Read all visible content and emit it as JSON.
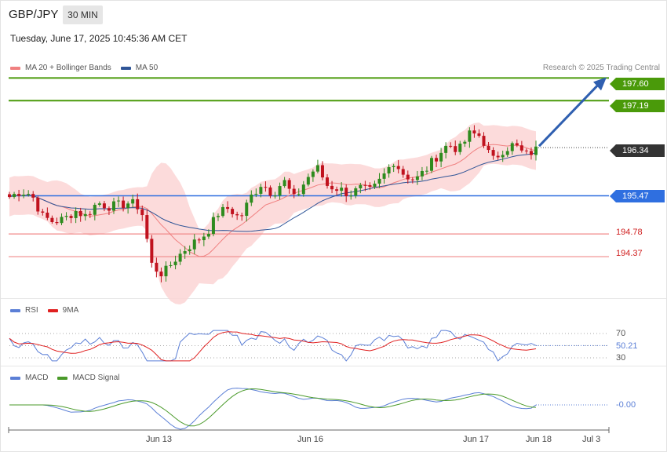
{
  "header": {
    "symbol": "GBP/JPY",
    "timeframe": "30 MIN",
    "datetime": "Tuesday, June 17, 2025 10:45:36 AM CET",
    "copyright": "Research © 2025 Trading Central"
  },
  "legends": {
    "main": [
      {
        "label": "MA 20 + Bollinger Bands",
        "color": "#f08080"
      },
      {
        "label": "MA 50",
        "color": "#2f5597"
      }
    ],
    "rsi": [
      {
        "label": "RSI",
        "color": "#5b7fd6"
      },
      {
        "label": "9MA",
        "color": "#e02020"
      }
    ],
    "macd": [
      {
        "label": "MACD",
        "color": "#5b7fd6"
      },
      {
        "label": "MACD Signal",
        "color": "#4a9a2a"
      }
    ]
  },
  "price_labels": [
    {
      "value": "197.60",
      "color": "#4a9a0a",
      "style": "badge"
    },
    {
      "value": "197.19",
      "color": "#4a9a0a",
      "style": "badge"
    },
    {
      "value": "196.34",
      "color": "#333333",
      "style": "badge"
    },
    {
      "value": "195.47",
      "color": "#2f6fe0",
      "style": "badge"
    },
    {
      "value": "194.78",
      "color": "#d02020",
      "style": "text"
    },
    {
      "value": "194.37",
      "color": "#d02020",
      "style": "text"
    }
  ],
  "rsi_labels": {
    "upper": "70",
    "current": "50.21",
    "lower": "30"
  },
  "macd_label": "-0.00",
  "x_labels": [
    "Jun 13",
    "Jun 16",
    "Jun 17",
    "Jun 18",
    "Jul 3"
  ],
  "colors": {
    "up": "#2e8b1e",
    "down": "#c0121e",
    "band_fill": "#fcd5d5"
  },
  "chart_data": {
    "type": "candlestick",
    "ylim": [
      193.7,
      198.0
    ],
    "levels": {
      "resistance": [
        197.6,
        197.19
      ],
      "current": 196.34,
      "pivot": 195.47,
      "support": [
        194.78,
        194.37
      ]
    },
    "close_path": [
      195.45,
      195.55,
      195.5,
      195.1,
      195.0,
      195.05,
      195.2,
      195.1,
      195.35,
      195.28,
      195.3,
      195.35,
      195.25,
      194.2,
      194.05,
      194.3,
      194.5,
      194.65,
      194.8,
      195.15,
      195.25,
      195.05,
      195.45,
      195.7,
      195.5,
      195.75,
      195.4,
      195.75,
      196.0,
      195.65,
      195.6,
      195.5,
      195.6,
      195.55,
      195.8,
      196.1,
      195.85,
      195.75,
      195.95,
      196.2,
      196.4,
      196.3,
      196.6,
      196.55,
      196.1,
      196.3,
      196.4,
      196.2,
      196.3
    ],
    "projection_target": 197.6,
    "rsi": {
      "ylim": [
        20,
        80
      ],
      "levels": [
        70,
        30
      ],
      "last": 50.21
    },
    "macd": {
      "last": -0.0
    }
  }
}
